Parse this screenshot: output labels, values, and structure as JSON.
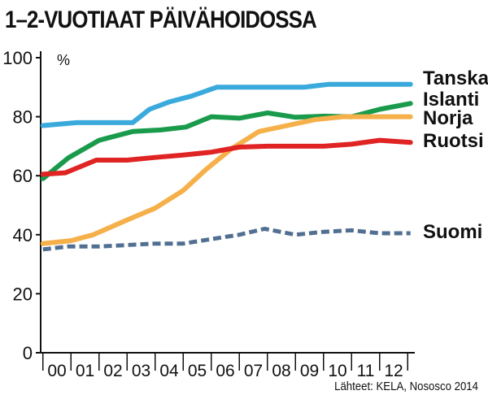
{
  "chart_data": {
    "type": "line",
    "title": "1–2-VUOTIAAT PÄIVÄHOIDOSSA",
    "ylabel": "%",
    "xlabel": "",
    "source": "Lähteet: KELA, Nososco 2014",
    "ylim": [
      0,
      100
    ],
    "yticks": [
      "0",
      "20",
      "40",
      "60",
      "80",
      "100"
    ],
    "x": [
      "00",
      "01",
      "02",
      "03",
      "04",
      "05",
      "06",
      "07",
      "08",
      "09",
      "10",
      "11",
      "12"
    ],
    "grid": false,
    "legend_placement": "right",
    "series": [
      {
        "name": "Tanska",
        "color": "#3aaadc",
        "dash": "solid",
        "points": [
          [
            -0.5,
            77
          ],
          [
            0.7,
            78
          ],
          [
            2.2,
            78
          ],
          [
            2.7,
            78
          ],
          [
            3.3,
            82.5
          ],
          [
            4.0,
            85
          ],
          [
            4.8,
            87
          ],
          [
            5.7,
            90
          ],
          [
            6.8,
            90
          ],
          [
            7.8,
            90
          ],
          [
            8.8,
            90
          ],
          [
            9.7,
            91
          ],
          [
            11.0,
            91
          ],
          [
            12.6,
            91
          ]
        ]
      },
      {
        "name": "Islanti",
        "color": "#1a9b4b",
        "dash": "solid",
        "points": [
          [
            -0.5,
            59
          ],
          [
            0.4,
            66
          ],
          [
            1.5,
            72
          ],
          [
            2.7,
            75
          ],
          [
            3.7,
            75.5
          ],
          [
            4.6,
            76.5
          ],
          [
            5.5,
            80
          ],
          [
            6.5,
            79.5
          ],
          [
            7.5,
            81.3
          ],
          [
            8.5,
            79.8
          ],
          [
            9.5,
            80.2
          ],
          [
            10.5,
            80
          ],
          [
            11.5,
            82.5
          ],
          [
            12.6,
            84.5
          ]
        ]
      },
      {
        "name": "Norja",
        "color": "#f5b04a",
        "dash": "solid",
        "points": [
          [
            -0.5,
            37
          ],
          [
            0.5,
            38
          ],
          [
            1.3,
            40
          ],
          [
            2.5,
            45
          ],
          [
            3.5,
            49
          ],
          [
            4.5,
            55
          ],
          [
            5.3,
            62
          ],
          [
            6.2,
            69
          ],
          [
            7.2,
            75
          ],
          [
            8.2,
            77
          ],
          [
            9.2,
            79
          ],
          [
            10.2,
            80
          ],
          [
            11.2,
            80
          ],
          [
            12.6,
            80
          ]
        ]
      },
      {
        "name": "Ruotsi",
        "color": "#e02323",
        "dash": "solid",
        "points": [
          [
            -0.5,
            60.5
          ],
          [
            0.3,
            61
          ],
          [
            1.4,
            65.3
          ],
          [
            2.5,
            65.3
          ],
          [
            3.5,
            66.2
          ],
          [
            4.5,
            67
          ],
          [
            5.5,
            68
          ],
          [
            6.5,
            69.7
          ],
          [
            7.5,
            70
          ],
          [
            8.5,
            70
          ],
          [
            9.5,
            70
          ],
          [
            10.5,
            70.7
          ],
          [
            11.5,
            72
          ],
          [
            12.6,
            71.3
          ]
        ]
      },
      {
        "name": "Suomi",
        "color": "#516f92",
        "dash": "dashed",
        "points": [
          [
            -0.5,
            35
          ],
          [
            0.4,
            36
          ],
          [
            1.5,
            36
          ],
          [
            2.5,
            36.5
          ],
          [
            3.5,
            37
          ],
          [
            4.5,
            37
          ],
          [
            5.5,
            38.5
          ],
          [
            6.5,
            40
          ],
          [
            7.4,
            42
          ],
          [
            8.5,
            40
          ],
          [
            9.5,
            41
          ],
          [
            10.5,
            41.5
          ],
          [
            11.5,
            40.5
          ],
          [
            12.6,
            40.5
          ]
        ]
      }
    ]
  }
}
